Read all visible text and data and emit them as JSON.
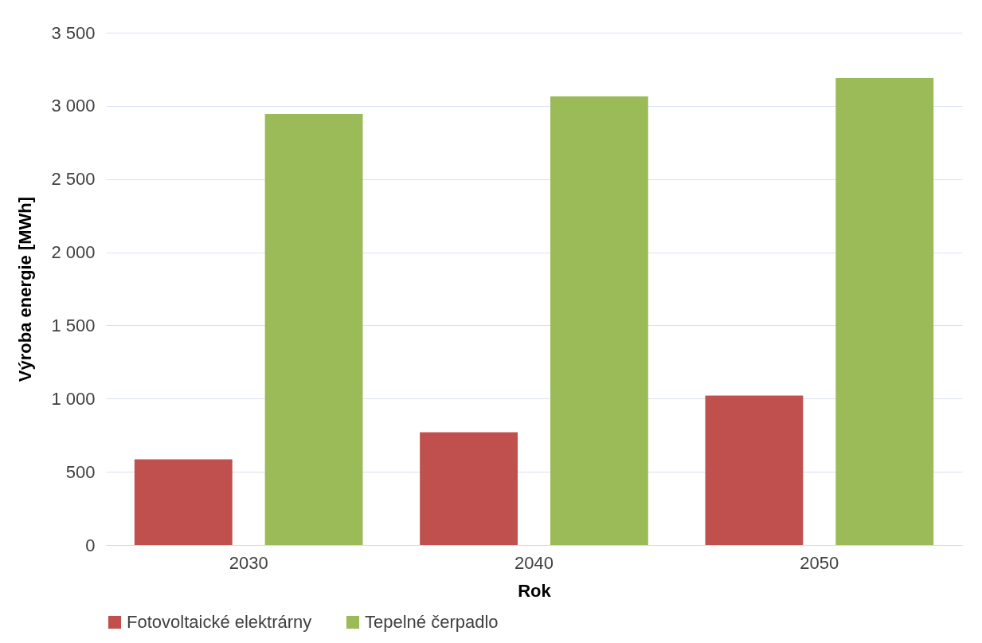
{
  "chart_data": {
    "type": "bar",
    "xlabel": "Rok",
    "ylabel": "Výroba energie [MWh]",
    "categories": [
      "2030",
      "2040",
      "2050"
    ],
    "series": [
      {
        "name": "Fotovoltaické elektrárny",
        "color": "#c0504d",
        "values": [
          585,
          770,
          1020
        ]
      },
      {
        "name": "Tepelné čerpadlo",
        "color": "#9bbb59",
        "values": [
          2945,
          3065,
          3190
        ]
      }
    ],
    "ylim": [
      0,
      3500
    ],
    "yticks": [
      0,
      {
        "value": 500,
        "label": "500"
      },
      {
        "value": 1000,
        "label": "1 000"
      },
      {
        "value": 1500,
        "label": "1 500"
      },
      {
        "value": 2000,
        "label": "2 000"
      },
      {
        "value": 2500,
        "label": "2 500"
      },
      {
        "value": 3000,
        "label": "3 000"
      },
      {
        "value": 3500,
        "label": "3 500"
      }
    ],
    "grid": "y",
    "legend": "bottom"
  }
}
